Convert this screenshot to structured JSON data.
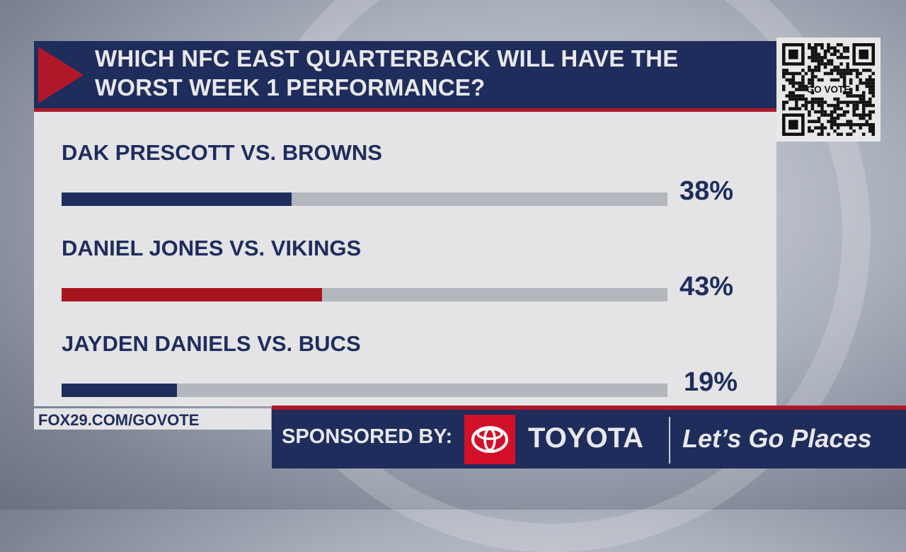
{
  "header": {
    "title_line1": "WHICH NFC EAST QUARTERBACK WILL HAVE THE",
    "title_line2": "WORST WEEK 1 PERFORMANCE?"
  },
  "chart_data": {
    "type": "bar",
    "orientation": "horizontal",
    "title": "WHICH NFC EAST QUARTERBACK WILL HAVE THE WORST WEEK 1 PERFORMANCE?",
    "categories": [
      "DAK PRESCOTT VS. BROWNS",
      "DANIEL JONES VS. VIKINGS",
      "JAYDEN DANIELS VS. BUCS"
    ],
    "values": [
      38,
      43,
      19
    ],
    "labels": [
      "38%",
      "43%",
      "19%"
    ],
    "colors": [
      "#1f2d5c",
      "#a8151f",
      "#1f2d5c"
    ],
    "track_color": "#b4b6be",
    "xlim": [
      0,
      100
    ]
  },
  "qr": {
    "caption": "GO VOTE"
  },
  "footer": {
    "url": "FOX29.COM/GOVOTE",
    "sponsored_by": "SPONSORED BY:",
    "brand": "TOYOTA",
    "slogan": "Let’s Go Places"
  },
  "colors": {
    "navy": "#1f2d5c",
    "red": "#b0182a",
    "toyota_red": "#d3102a"
  }
}
